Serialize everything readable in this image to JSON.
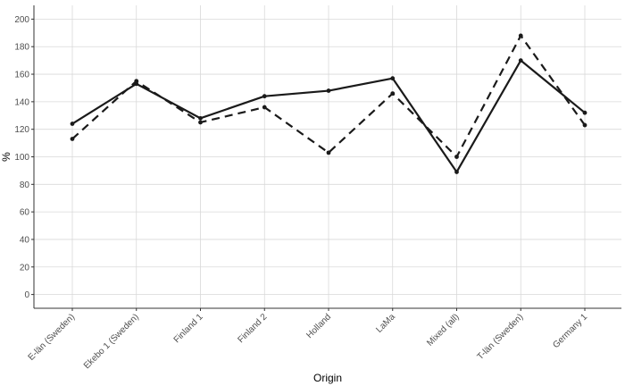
{
  "chart_data": {
    "type": "line",
    "categories": [
      "E-län (Sweden)",
      "Ekebo 1 (Sweden)",
      "Finland 1",
      "Finland 2",
      "Holland",
      "LaMa",
      "Mixed (all)",
      "T-län (Sweden)",
      "Germany 1"
    ],
    "series": [
      {
        "values": [
          124,
          153,
          128,
          144,
          148,
          157,
          89,
          170,
          132
        ],
        "color": "#1a1a1a",
        "dash": "solid"
      },
      {
        "values": [
          113,
          155,
          125,
          136,
          103,
          146,
          100,
          188,
          123
        ],
        "color": "#1a1a1a",
        "dash": "dashed"
      }
    ],
    "xlabel": "Origin",
    "ylabel": "%",
    "ylim": [
      -10,
      210
    ],
    "yticks": [
      0,
      20,
      40,
      60,
      80,
      100,
      120,
      140,
      160,
      180,
      200
    ],
    "grid": true,
    "legend": "none"
  }
}
